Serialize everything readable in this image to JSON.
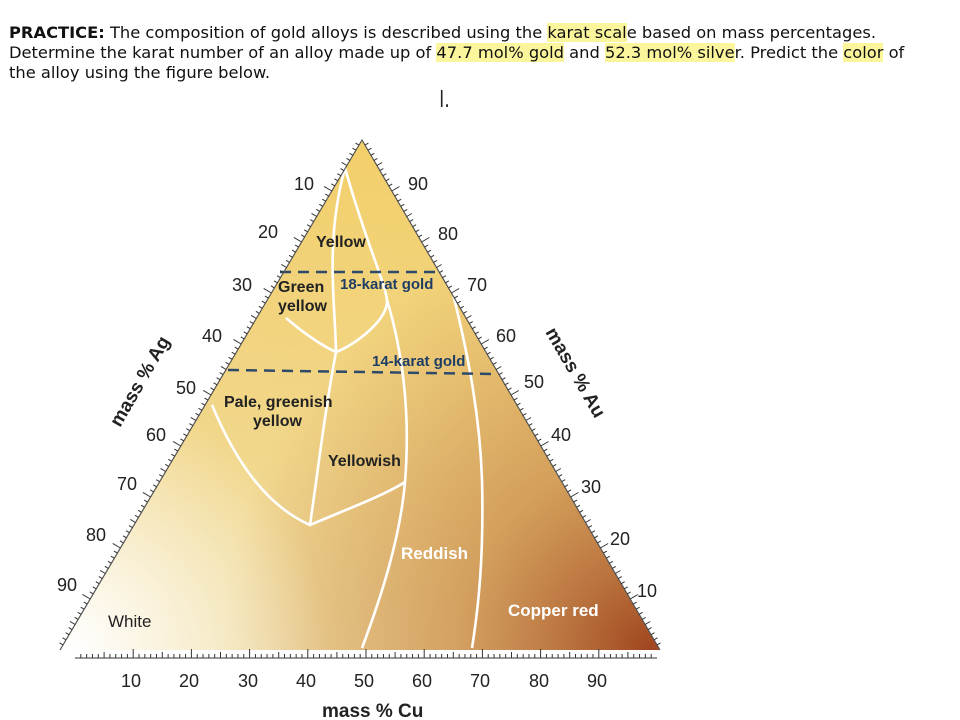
{
  "problem": {
    "lead": "PRACTICE:",
    "part1": " The composition of gold alloys is described using the ",
    "hl1": "karat scal",
    "part2": "e based on mass percentages.",
    "part3": "Determine the karat number of an alloy made up of ",
    "hl2": "47.7 mol% gold",
    "part4": " and ",
    "hl3": "52.3 mol% silve",
    "part5": "r. Predict the ",
    "hl4": "color",
    "part6": " of",
    "part7": "the alloy using the figure below."
  },
  "handwriting": "l.",
  "diagram": {
    "axes": {
      "ag_title": "mass % Ag",
      "au_title": "mass % Au",
      "cu_title": "mass % Cu",
      "ag_ticks": [
        "10",
        "20",
        "30",
        "40",
        "50",
        "60",
        "70",
        "80",
        "90"
      ],
      "au_ticks": [
        "90",
        "80",
        "70",
        "60",
        "50",
        "40",
        "30",
        "20",
        "10"
      ],
      "cu_ticks": [
        "10",
        "20",
        "30",
        "40",
        "50",
        "60",
        "70",
        "80",
        "90"
      ]
    },
    "regions": {
      "yellow": "Yellow",
      "green_yellow_1": "Green",
      "green_yellow_2": "yellow",
      "pale_1": "Pale, greenish",
      "pale_2": "yellow",
      "yellowish": "Yellowish",
      "reddish": "Reddish",
      "copper_red": "Copper red",
      "white": "White"
    },
    "karat_lines": {
      "k18": "18-karat gold",
      "k14": "14-karat gold"
    },
    "colors": {
      "white_corner": "#ffffff",
      "gold_corner": "#f3cf6a",
      "copper_corner": "#a0461f",
      "boundary": "#ffffff",
      "karat_dash": "#2e4a6b"
    }
  }
}
